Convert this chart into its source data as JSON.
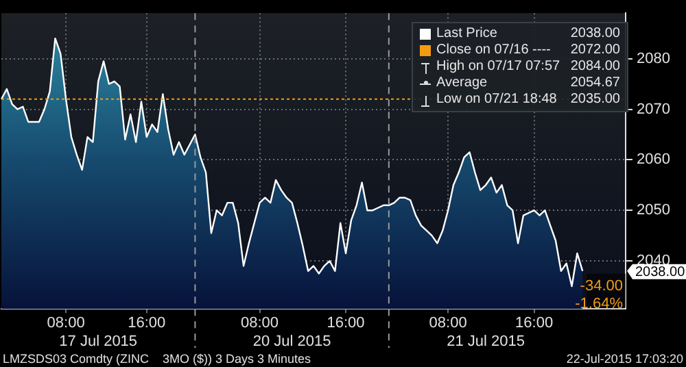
{
  "chart_data": {
    "type": "area",
    "categories": [
      null,
      null,
      null,
      null,
      null,
      null,
      null,
      null,
      null,
      null,
      null,
      null,
      "08:00",
      null,
      null,
      null,
      null,
      null,
      "17 Jul 2015",
      null,
      null,
      null,
      null,
      null,
      null,
      null,
      null,
      "16:00",
      null,
      null,
      null,
      null,
      null,
      null,
      null,
      null,
      null,
      null,
      null,
      null,
      null,
      null,
      null,
      null,
      null,
      null,
      null,
      null,
      "08:00",
      null,
      null,
      null,
      null,
      null,
      "20 Jul 2015",
      null,
      null,
      null,
      null,
      null,
      null,
      null,
      null,
      null,
      "16:00",
      null,
      null,
      null,
      null,
      null,
      null,
      null,
      null,
      null,
      null,
      null,
      null,
      null,
      null,
      null,
      null,
      null,
      null,
      "08:00",
      null,
      null,
      null,
      null,
      null,
      null,
      "21 Jul 2015",
      null,
      null,
      null,
      null,
      null,
      null,
      null,
      null,
      "16:00",
      null,
      null,
      null,
      null,
      null,
      null,
      null,
      null,
      null,
      null,
      null,
      null,
      null,
      null,
      null,
      null,
      null
    ],
    "series": [
      {
        "name": "Last Price",
        "color": "#ffffff",
        "values": [
          2072,
          2074,
          2071,
          2070,
          2070.5,
          2067.5,
          2067.5,
          2067.5,
          2070,
          2073.5,
          2084,
          2081,
          2072,
          2064.5,
          2061,
          2058,
          2064.5,
          2063.5,
          2075.5,
          2079.5,
          2075,
          2075.5,
          2074.5,
          2064,
          2069,
          2063.5,
          2071.5,
          2064.5,
          2067,
          2065.5,
          2073,
          2066,
          2061,
          2063.5,
          2061,
          2063,
          2065,
          2060.5,
          2057.5,
          2045.5,
          2050,
          2049,
          2051.5,
          2051.5,
          2047.5,
          2039,
          2043.5,
          2047.5,
          2051.5,
          2052.5,
          2051.5,
          2056,
          2054,
          2052.5,
          2051.5,
          2047.5,
          2043,
          2038,
          2039,
          2037.5,
          2039,
          2040,
          2038,
          2047.5,
          2041.5,
          2048,
          2051,
          2055.5,
          2050,
          2050,
          2050.5,
          2051,
          2051,
          2051.5,
          2052.5,
          2052.5,
          2052,
          2049,
          2047,
          2046,
          2045,
          2043.5,
          2046,
          2050,
          2055,
          2057.5,
          2060.5,
          2061.5,
          2057.5,
          2054,
          2055,
          2056.5,
          2053.5,
          2055,
          2051,
          2050,
          2043.5,
          2049,
          2049.5,
          2050,
          2049,
          2050,
          2047,
          2044,
          2038,
          2039.5,
          2035,
          2041.5,
          2038,
          null,
          null,
          null,
          null,
          null,
          null,
          null,
          null
        ]
      }
    ],
    "ylim": [
      2030.5,
      2089
    ],
    "yticks": [
      2040,
      2050,
      2060,
      2070,
      2080
    ],
    "ref_lines": [
      {
        "axis": "y",
        "value": 2072,
        "label": "Close on 07/16 ---- 2072.00",
        "color": "#f39c12",
        "line_style": "dotted"
      }
    ],
    "annotations": [
      "2038.00",
      "High on 07/17 07:57 2084.00",
      "Average 2054.67",
      "Low on 07/21 18:48 2035.00",
      "-34.00",
      "-1.64%",
      "LMZSDS03 Comdty (ZINC    3MO ($)) 3 Days 3 Minutes",
      "22-Jul-2015 17:03:20"
    ],
    "grid": true,
    "legend": "top right",
    "line_style": "solid",
    "marker": "none"
  }
}
